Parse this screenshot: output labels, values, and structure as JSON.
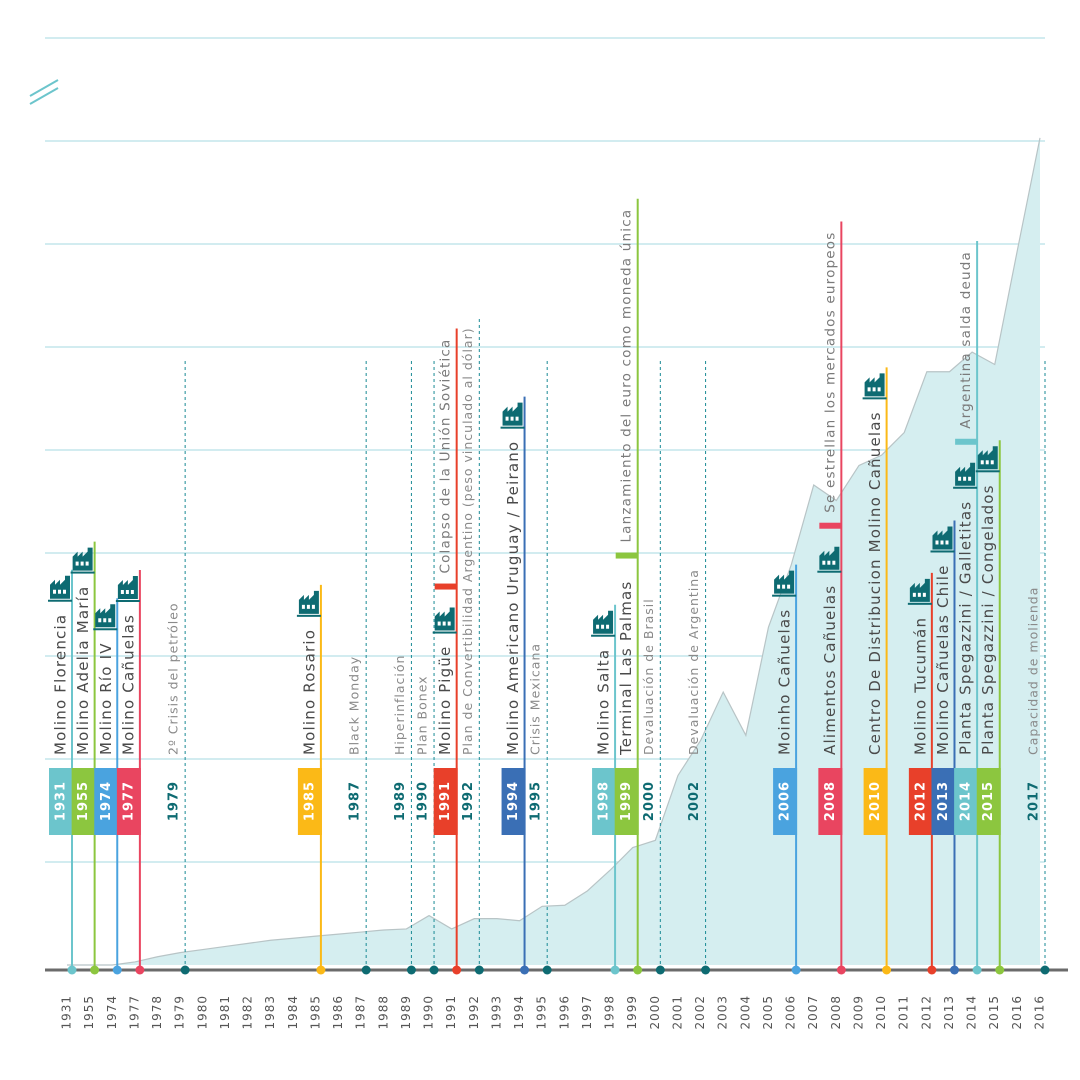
{
  "chart_data": {
    "type": "area",
    "categories": [
      "1931",
      "1955",
      "1974",
      "1977",
      "1978",
      "1979",
      "1980",
      "1981",
      "1982",
      "1983",
      "1984",
      "1985",
      "1986",
      "1987",
      "1988",
      "1989",
      "1990",
      "1991",
      "1992",
      "1993",
      "1994",
      "1995",
      "1996",
      "1997",
      "1998",
      "1999",
      "2000",
      "2001",
      "2002",
      "2003",
      "2004",
      "2005",
      "2006",
      "2007",
      "2008",
      "2009",
      "2010",
      "2011",
      "2012",
      "2013",
      "2014",
      "2015",
      "2016",
      "2016"
    ],
    "values": [
      0,
      0,
      0,
      0.03,
      0.08,
      0.12,
      0.15,
      0.18,
      0.21,
      0.24,
      0.26,
      0.28,
      0.3,
      0.32,
      0.34,
      0.35,
      0.48,
      0.35,
      0.45,
      0.45,
      0.43,
      0.57,
      0.58,
      0.72,
      0.92,
      1.14,
      1.21,
      1.84,
      2.18,
      2.65,
      2.23,
      3.28,
      3.88,
      4.66,
      4.51,
      4.85,
      4.95,
      5.17,
      5.76,
      5.76,
      5.95,
      5.83,
      6.94,
      8.03
    ],
    "color": "#d5eef0",
    "line_color": "#b8c4c6",
    "ylim": [
      0,
      9
    ],
    "yticks": [
      1,
      2,
      3,
      4,
      5,
      6,
      7,
      8,
      9
    ],
    "grid": true,
    "events": [
      {
        "year": "1931",
        "label": "Molino Florencia",
        "style": "milestone",
        "color": "#6cc5cc",
        "icon": true
      },
      {
        "year": "1955",
        "label": "Molino Adelia María",
        "style": "milestone",
        "color": "#8cc63f",
        "icon": true
      },
      {
        "year": "1974",
        "label": "Molino Río IV",
        "style": "milestone",
        "color": "#4aa3df",
        "icon": true
      },
      {
        "year": "1977",
        "label": "Molino Cañuelas",
        "style": "milestone",
        "color": "#e94560",
        "icon": true
      },
      {
        "year": "1979",
        "label": "2º Crisis del petróleo",
        "style": "context",
        "color": "#0e6b72",
        "icon": false
      },
      {
        "year": "1985",
        "label": "Molino Rosario",
        "style": "milestone",
        "color": "#fbb917",
        "icon": true
      },
      {
        "year": "1987",
        "label": "Black Monday",
        "style": "context",
        "color": "#0e6b72",
        "icon": false
      },
      {
        "year": "1989",
        "label": "Hiperinflación",
        "style": "context",
        "color": "#0e6b72",
        "icon": false
      },
      {
        "year": "1990",
        "label": "Plan Bonex",
        "style": "context",
        "color": "#0e6b72",
        "icon": false
      },
      {
        "year": "1991",
        "label": "Molino Pigüe",
        "style": "milestone",
        "color": "#e8402a",
        "icon": true,
        "note": "Colapso de la Unión Soviética"
      },
      {
        "year": "1992",
        "label": "Plan de Convertibilidad Argentino (peso vinculado al dólar)",
        "style": "context",
        "color": "#0e6b72",
        "icon": false
      },
      {
        "year": "1994",
        "label": "Molino Americano Uruguay / Peirano",
        "style": "milestone",
        "color": "#3a6fb5",
        "icon": true
      },
      {
        "year": "1995",
        "label": "Crisis Mexicana",
        "style": "context",
        "color": "#0e6b72",
        "icon": false
      },
      {
        "year": "1998",
        "label": "Molino Salta",
        "style": "milestone",
        "color": "#6cc5cc",
        "icon": true
      },
      {
        "year": "1999",
        "label": "Terminal Las Palmas",
        "style": "milestone",
        "color": "#8cc63f",
        "icon": false,
        "note": "Lanzamiento del euro como moneda única"
      },
      {
        "year": "2000",
        "label": "Devaluación de Brasil",
        "style": "context",
        "color": "#0e6b72",
        "icon": false
      },
      {
        "year": "2002",
        "label": "Devaluación de Argentina",
        "style": "context",
        "color": "#0e6b72",
        "icon": false
      },
      {
        "year": "2006",
        "label": "Moinho Cañuelas",
        "style": "milestone",
        "color": "#4aa3df",
        "icon": true
      },
      {
        "year": "2008",
        "label": "Alimentos Cañuelas",
        "style": "milestone",
        "color": "#e94560",
        "icon": true,
        "note": "Se estrellan los mercados europeos"
      },
      {
        "year": "2010",
        "label": "Centro De Distribucion Molino Cañuelas",
        "style": "milestone",
        "color": "#fbb917",
        "icon": true
      },
      {
        "year": "2012",
        "label": "Molino Tucumán",
        "style": "milestone",
        "color": "#e8402a",
        "icon": true
      },
      {
        "year": "2013",
        "label": "Molino Cañuelas Chile",
        "style": "milestone",
        "color": "#3a6fb5",
        "icon": true
      },
      {
        "year": "2014",
        "label": "Planta Spegazzini / Galletitas",
        "style": "milestone",
        "color": "#6cc5cc",
        "icon": true,
        "note": "Argentina salda deuda"
      },
      {
        "year": "2015",
        "label": "Planta Spegazzini / Congelados",
        "style": "milestone",
        "color": "#8cc63f",
        "icon": true
      },
      {
        "year": "2017",
        "label": "Capacidad de molienda",
        "style": "context",
        "color": "#0e6b72",
        "icon": false
      }
    ]
  }
}
